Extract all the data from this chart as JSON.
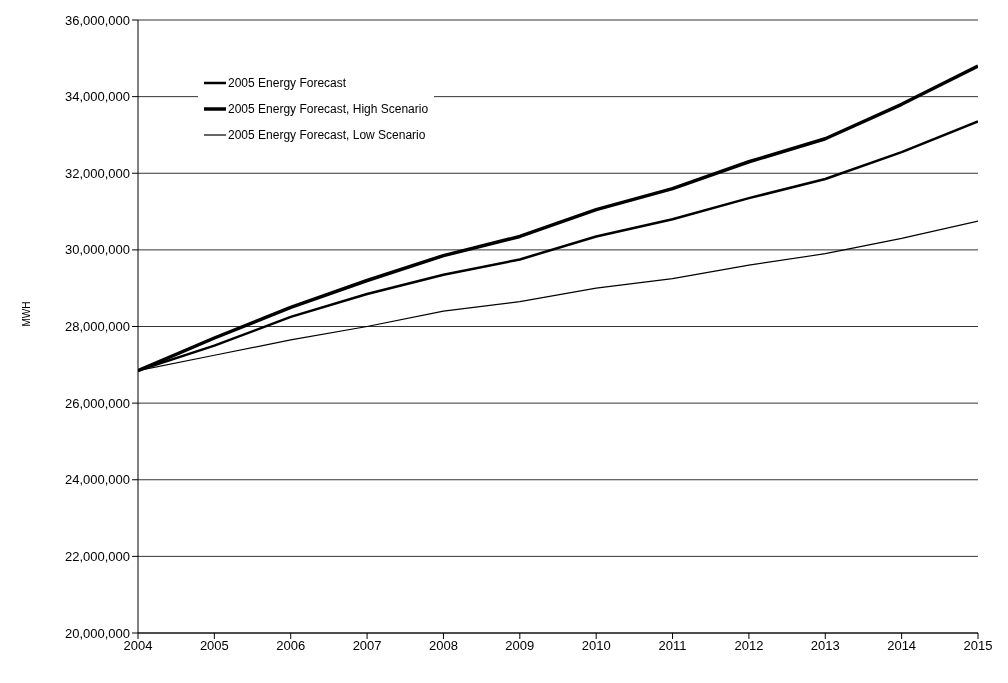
{
  "chart_data": {
    "type": "line",
    "ylabel": "MWH",
    "x": [
      2004,
      2005,
      2006,
      2007,
      2008,
      2009,
      2010,
      2011,
      2012,
      2013,
      2014,
      2015
    ],
    "xlim": [
      2004,
      2015
    ],
    "xticks": [
      2004,
      2005,
      2006,
      2007,
      2008,
      2009,
      2010,
      2011,
      2012,
      2013,
      2014,
      2015
    ],
    "ylim": [
      20000000,
      36000000
    ],
    "yticks": [
      {
        "value": 20000000,
        "label": "20,000,000"
      },
      {
        "value": 22000000,
        "label": "22,000,000"
      },
      {
        "value": 24000000,
        "label": "24,000,000"
      },
      {
        "value": 26000000,
        "label": "26,000,000"
      },
      {
        "value": 28000000,
        "label": "28,000,000"
      },
      {
        "value": 30000000,
        "label": "30,000,000"
      },
      {
        "value": 32000000,
        "label": "32,000,000"
      },
      {
        "value": 34000000,
        "label": "34,000,000"
      },
      {
        "value": 36000000,
        "label": "36,000,000"
      }
    ],
    "grid": "y",
    "legend": "top left",
    "marker": "none",
    "line_style": "solid",
    "series": [
      {
        "name": "2005 Energy Forecast",
        "color": "#000000",
        "values": [
          26850000,
          27500000,
          28250000,
          28850000,
          29350000,
          29750000,
          30350000,
          30800000,
          31350000,
          31850000,
          32550000,
          33350000
        ]
      },
      {
        "name": "2005 Energy Forecast, High Scenario",
        "color": "#000000",
        "values": [
          26850000,
          27700000,
          28500000,
          29200000,
          29850000,
          30350000,
          31050000,
          31600000,
          32300000,
          32900000,
          33800000,
          34800000
        ]
      },
      {
        "name": "2005 Energy Forecast, Low Scenario",
        "color": "#000000",
        "values": [
          26850000,
          27250000,
          27650000,
          28000000,
          28400000,
          28650000,
          29000000,
          29250000,
          29600000,
          29900000,
          30300000,
          30750000
        ]
      }
    ]
  }
}
